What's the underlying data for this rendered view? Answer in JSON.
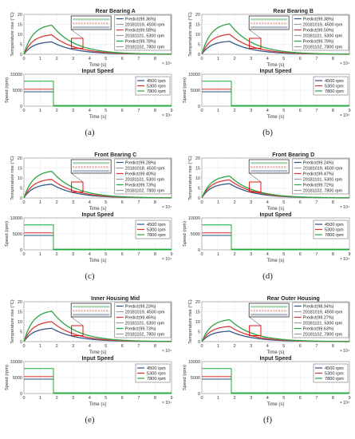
{
  "colors": {
    "green": "#1fa83a",
    "red": "#e33030",
    "blue": "#2b4f86",
    "gray": "#9a9a9a",
    "zoom_box": "#e00000",
    "axis": "#555555",
    "grid": "#e2e2e2"
  },
  "chart_data": [
    {
      "type": "line",
      "panel_label": "(a)",
      "temperature": {
        "title": "Rear Bearing A",
        "xlabel": "Time (s)",
        "ylabel": "Temperature rise (°C)",
        "xlim": [
          0,
          90000
        ],
        "ylim": [
          0,
          20
        ],
        "x_ticks": [
          "0",
          "1",
          "2",
          "3",
          "4",
          "5",
          "6",
          "7",
          "8"
        ],
        "y_ticks": [
          "0",
          "5",
          "10",
          "15",
          "20"
        ],
        "x_exponent": "× 10⁴",
        "legend": [
          "Predict(99.36%)",
          "20181019, 4500 rpm",
          "Predict(99.58%)",
          "20181101, 5300 rpm",
          "Predict(99.78%)",
          "20181102, 7800 rpm"
        ],
        "steady_rise": [
          6.5,
          10.2,
          15.3
        ]
      },
      "speed": {
        "title": "Input Speed",
        "xlabel": "Time (s)",
        "ylabel": "Speed (rpm)",
        "xlim": [
          0,
          90000
        ],
        "ylim": [
          0,
          10000
        ],
        "x_ticks": [
          "0",
          "1",
          "2",
          "3",
          "4",
          "5",
          "6",
          "7",
          "8",
          "9"
        ],
        "y_ticks": [
          "0",
          "5000",
          "10000"
        ],
        "x_exponent": "× 10⁴",
        "legend": [
          "4500 rpm",
          "5300 rpm",
          "7800 rpm"
        ],
        "series": [
          {
            "name": "4500 rpm",
            "speed": 4500,
            "end_time": 18000
          },
          {
            "name": "5300 rpm",
            "speed": 5300,
            "end_time": 18000
          },
          {
            "name": "7800 rpm",
            "speed": 7800,
            "end_time": 18000
          }
        ]
      }
    },
    {
      "type": "line",
      "panel_label": "(b)",
      "temperature": {
        "title": "Rear Bearing B",
        "xlabel": "Time (s)",
        "ylabel": "Temperature rise (°C)",
        "xlim": [
          0,
          90000
        ],
        "ylim": [
          0,
          20
        ],
        "x_ticks": [
          "0",
          "1",
          "2",
          "3",
          "4",
          "5",
          "6",
          "7",
          "8"
        ],
        "y_ticks": [
          "0",
          "5",
          "10",
          "15",
          "20"
        ],
        "x_exponent": "× 10⁴",
        "legend": [
          "Predict(99.38%)",
          "20181019, 4500 rpm",
          "Predict(99.59%)",
          "20181101, 5300 rpm",
          "Predict(99.79%)",
          "20181102, 7800 rpm"
        ],
        "steady_rise": [
          6.8,
          10.5,
          16.0
        ]
      },
      "speed": {
        "title": "Input Speed",
        "xlabel": "Time (s)",
        "ylabel": "Speed (rpm)",
        "xlim": [
          0,
          90000
        ],
        "ylim": [
          0,
          10000
        ],
        "x_ticks": [
          "0",
          "1",
          "2",
          "3",
          "4",
          "5",
          "6",
          "7",
          "8",
          "9"
        ],
        "y_ticks": [
          "0",
          "5000",
          "10000"
        ],
        "x_exponent": "× 10⁴",
        "legend": [
          "4500 rpm",
          "5300 rpm",
          "7800 rpm"
        ],
        "series": [
          {
            "name": "4500 rpm",
            "speed": 4500,
            "end_time": 18000
          },
          {
            "name": "5300 rpm",
            "speed": 5300,
            "end_time": 18000
          },
          {
            "name": "7800 rpm",
            "speed": 7800,
            "end_time": 18000
          }
        ]
      }
    },
    {
      "type": "line",
      "panel_label": "(c)",
      "temperature": {
        "title": "Front Bearing C",
        "xlabel": "Time (s)",
        "ylabel": "Temperature rise (°C)",
        "xlim": [
          0,
          90000
        ],
        "ylim": [
          0,
          20
        ],
        "x_ticks": [
          "0",
          "1",
          "2",
          "3",
          "4",
          "5",
          "6",
          "7",
          "8"
        ],
        "y_ticks": [
          "0",
          "5",
          "10",
          "15",
          "20"
        ],
        "x_exponent": "× 10⁴",
        "legend": [
          "Predict(99.28%)",
          "20181018, 4500 rpm",
          "Predict(99.40%)",
          "20181101, 5300 rpm",
          "Predict(99.73%)",
          "20181102, 7800 rpm"
        ],
        "steady_rise": [
          7.2,
          9.8,
          14.0
        ]
      },
      "speed": {
        "title": "Input Speed",
        "xlabel": "Time (s)",
        "ylabel": "Speed (rpm)",
        "xlim": [
          0,
          90000
        ],
        "ylim": [
          0,
          10000
        ],
        "x_ticks": [
          "0",
          "1",
          "2",
          "3",
          "4",
          "5",
          "6",
          "7",
          "8",
          "9"
        ],
        "y_ticks": [
          "0",
          "5000",
          "10000"
        ],
        "x_exponent": "× 10⁴",
        "legend": [
          "4500 rpm",
          "5300 rpm",
          "7800 rpm"
        ],
        "series": [
          {
            "name": "4500 rpm",
            "speed": 4500,
            "end_time": 18000
          },
          {
            "name": "5300 rpm",
            "speed": 5300,
            "end_time": 18000
          },
          {
            "name": "7800 rpm",
            "speed": 7800,
            "end_time": 18000
          }
        ]
      }
    },
    {
      "type": "line",
      "panel_label": "(d)",
      "temperature": {
        "title": "Front Bearing D",
        "xlabel": "Time (s)",
        "ylabel": "Temperature rise (°C)",
        "xlim": [
          0,
          90000
        ],
        "ylim": [
          0,
          20
        ],
        "x_ticks": [
          "0",
          "1",
          "2",
          "3",
          "4",
          "5",
          "6",
          "7",
          "8"
        ],
        "y_ticks": [
          "0",
          "5",
          "10",
          "15",
          "20"
        ],
        "x_exponent": "× 10⁴",
        "legend": [
          "Predict(99.24%)",
          "20181019, 4500 rpm",
          "Predict(99.47%)",
          "20181101, 5300 rpm",
          "Predict(99.72%)",
          "20181102, 7800 rpm"
        ],
        "steady_rise": [
          7.5,
          9.5,
          11.5
        ]
      },
      "speed": {
        "title": "Input Speed",
        "xlabel": "Time (s)",
        "ylabel": "Speed (rpm)",
        "xlim": [
          0,
          90000
        ],
        "ylim": [
          0,
          10000
        ],
        "x_ticks": [
          "0",
          "1",
          "2",
          "3",
          "4",
          "5",
          "6",
          "7",
          "8",
          "9"
        ],
        "y_ticks": [
          "0",
          "5000",
          "10000"
        ],
        "x_exponent": "× 10⁴",
        "legend": [
          "4500 rpm",
          "5300 rpm",
          "7800 rpm"
        ],
        "series": [
          {
            "name": "4500 rpm",
            "speed": 4500,
            "end_time": 18000
          },
          {
            "name": "5300 rpm",
            "speed": 5300,
            "end_time": 18000
          },
          {
            "name": "7800 rpm",
            "speed": 7800,
            "end_time": 18000
          }
        ]
      }
    },
    {
      "type": "line",
      "panel_label": "(e)",
      "temperature": {
        "title": "Inner Housing Mid",
        "xlabel": "Time (s)",
        "ylabel": "Temperature rise (°C)",
        "xlim": [
          0,
          90000
        ],
        "ylim": [
          0,
          20
        ],
        "x_ticks": [
          "0",
          "1",
          "2",
          "3",
          "4",
          "5",
          "6",
          "7",
          "8"
        ],
        "y_ticks": [
          "0",
          "5",
          "10",
          "15",
          "20"
        ],
        "x_exponent": "× 10⁴",
        "legend": [
          "Predict(99.23%)",
          "20181019, 4500 rpm",
          "Predict(99.46%)",
          "20181101, 5300 rpm",
          "Predict(99.73%)",
          "20181102, 7800 rpm"
        ],
        "steady_rise": [
          7.0,
          10.5,
          16.0
        ]
      },
      "speed": {
        "title": "Input Speed",
        "xlabel": "Time (s)",
        "ylabel": "Speed (rpm)",
        "xlim": [
          0,
          90000
        ],
        "ylim": [
          0,
          10000
        ],
        "x_ticks": [
          "0",
          "1",
          "2",
          "3",
          "4",
          "5",
          "6",
          "7",
          "8",
          "9"
        ],
        "y_ticks": [
          "0",
          "5000",
          "10000"
        ],
        "x_exponent": "× 10⁴",
        "legend": [
          "4500 rpm",
          "5300 rpm",
          "7800 rpm"
        ],
        "series": [
          {
            "name": "4500 rpm",
            "speed": 4500,
            "end_time": 18000
          },
          {
            "name": "5300 rpm",
            "speed": 5300,
            "end_time": 18000
          },
          {
            "name": "7800 rpm",
            "speed": 7800,
            "end_time": 18000
          }
        ]
      }
    },
    {
      "type": "line",
      "panel_label": "(f)",
      "temperature": {
        "title": "Rear Outer Housing",
        "xlabel": "Time (s)",
        "ylabel": "Temperature rise (°C)",
        "xlim": [
          0,
          90000
        ],
        "ylim": [
          0,
          20
        ],
        "x_ticks": [
          "0",
          "1",
          "2",
          "3",
          "4",
          "5",
          "6",
          "7",
          "8"
        ],
        "y_ticks": [
          "0",
          "5",
          "10",
          "15",
          "20"
        ],
        "x_exponent": "× 10⁴",
        "legend": [
          "Predict(98.94%)",
          "20181019, 4500 rpm",
          "Predict(99.27%)",
          "20181101, 5300 rpm",
          "Predict(99.63%)",
          "20181102, 7800 rpm"
        ],
        "steady_rise": [
          5.5,
          8.0,
          11.5
        ]
      },
      "speed": {
        "title": "Input Speed",
        "xlabel": "Time (s)",
        "ylabel": "Speed (rpm)",
        "xlim": [
          0,
          90000
        ],
        "ylim": [
          0,
          10000
        ],
        "x_ticks": [
          "0",
          "1",
          "2",
          "3",
          "4",
          "5",
          "6",
          "7",
          "8",
          "9"
        ],
        "y_ticks": [
          "0",
          "5000",
          "10000"
        ],
        "x_exponent": "× 10⁴",
        "legend": [
          "4500 rpm",
          "5300 rpm",
          "7800 rpm"
        ],
        "series": [
          {
            "name": "4500 rpm",
            "speed": 4500,
            "end_time": 18000
          },
          {
            "name": "5300 rpm",
            "speed": 5300,
            "end_time": 18000
          },
          {
            "name": "7800 rpm",
            "speed": 7800,
            "end_time": 18000
          }
        ]
      }
    }
  ]
}
